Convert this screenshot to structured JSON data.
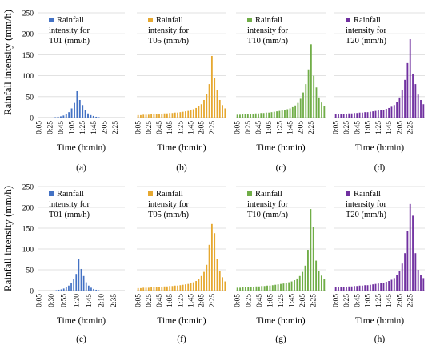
{
  "figure": {
    "ylabel": "Rainfall intensity (mm/h)",
    "xlabel": "Time (h:min)"
  },
  "chart_data": [
    {
      "type": "bar",
      "label": "(a)",
      "legend": [
        "Rainfall",
        "intensity for",
        "T01 (mm/h)"
      ],
      "color": "#4472C4",
      "ylim": [
        0,
        250
      ],
      "yticks": [
        0,
        50,
        100,
        150,
        200,
        250
      ],
      "xticklabels": [
        "0:05",
        "0:25",
        "0:45",
        "1:05",
        "1:25",
        "1:45",
        "2:05",
        "2:25"
      ],
      "tick_step": 4,
      "values": [
        0,
        0,
        0,
        0,
        0,
        0,
        1,
        2,
        3,
        5,
        8,
        13,
        22,
        35,
        63,
        42,
        30,
        18,
        10,
        6,
        4,
        2,
        1,
        0,
        0,
        0,
        0,
        0,
        0,
        0,
        0,
        0
      ]
    },
    {
      "type": "bar",
      "label": "(b)",
      "legend": [
        "Rainfall",
        "intensity for",
        "T05 (mm/h)"
      ],
      "color": "#E6A830",
      "ylim": [
        0,
        250
      ],
      "yticks": [
        0,
        50,
        100,
        150,
        200,
        250
      ],
      "xticklabels": [
        "0:05",
        "0:25",
        "0:45",
        "1:05",
        "1:25",
        "1:45",
        "2:05",
        "2:25"
      ],
      "tick_step": 4,
      "values": [
        6,
        6,
        7,
        7,
        7,
        8,
        8,
        8,
        9,
        9,
        10,
        10,
        11,
        11,
        12,
        12,
        13,
        14,
        15,
        16,
        18,
        20,
        23,
        27,
        32,
        42,
        57,
        80,
        147,
        95,
        65,
        42,
        30,
        22
      ]
    },
    {
      "type": "bar",
      "label": "(c)",
      "legend": [
        "Rainfall",
        "intensity for",
        "T10 (mm/h)"
      ],
      "color": "#70AD47",
      "ylim": [
        0,
        250
      ],
      "yticks": [
        0,
        50,
        100,
        150,
        200,
        250
      ],
      "xticklabels": [
        "0:05",
        "0:25",
        "0:45",
        "1:05",
        "1:25",
        "1:45",
        "2:05",
        "2:25"
      ],
      "tick_step": 4,
      "values": [
        7,
        7,
        8,
        8,
        8,
        9,
        9,
        10,
        10,
        11,
        11,
        12,
        12,
        13,
        14,
        15,
        16,
        17,
        18,
        20,
        22,
        25,
        29,
        35,
        45,
        60,
        80,
        115,
        175,
        100,
        72,
        48,
        36,
        27
      ]
    },
    {
      "type": "bar",
      "label": "(d)",
      "legend": [
        "Rainfall",
        "intensity for",
        "T20 (mm/h)"
      ],
      "color": "#7030A0",
      "ylim": [
        0,
        250
      ],
      "yticks": [
        0,
        50,
        100,
        150,
        200,
        250
      ],
      "xticklabels": [
        "0:05",
        "0:25",
        "0:45",
        "1:05",
        "1:25",
        "1:45",
        "2:05",
        "2:25"
      ],
      "tick_step": 4,
      "values": [
        8,
        8,
        9,
        9,
        9,
        10,
        10,
        11,
        11,
        12,
        12,
        13,
        13,
        14,
        15,
        16,
        17,
        18,
        19,
        21,
        23,
        26,
        30,
        37,
        48,
        65,
        90,
        130,
        187,
        105,
        80,
        55,
        42,
        32
      ]
    },
    {
      "type": "bar",
      "label": "(e)",
      "legend": [
        "Rainfall",
        "intensity for",
        "T01 (mm/h)"
      ],
      "color": "#4472C4",
      "ylim": [
        0,
        250
      ],
      "yticks": [
        0,
        50,
        100,
        150,
        200,
        250
      ],
      "xticklabels": [
        "0:05",
        "0:30",
        "0:55",
        "1:20",
        "1:45",
        "2:10",
        "2:35"
      ],
      "tick_step": 5,
      "values": [
        0,
        0,
        0,
        0,
        0,
        0,
        0,
        1,
        2,
        3,
        5,
        8,
        12,
        18,
        27,
        40,
        75,
        52,
        35,
        20,
        12,
        7,
        4,
        2,
        1,
        0,
        0,
        0,
        0,
        0,
        0,
        0,
        0,
        0,
        0
      ]
    },
    {
      "type": "bar",
      "label": "(f)",
      "legend": [
        "Rainfall",
        "intensity for",
        "T05 (mm/h)"
      ],
      "color": "#E6A830",
      "ylim": [
        0,
        250
      ],
      "yticks": [
        0,
        50,
        100,
        150,
        200,
        250
      ],
      "xticklabels": [
        "0:05",
        "0:25",
        "0:45",
        "1:05",
        "1:25",
        "1:45",
        "2:05",
        "2:25"
      ],
      "tick_step": 4,
      "values": [
        6,
        6,
        7,
        7,
        7,
        8,
        8,
        8,
        9,
        9,
        10,
        10,
        11,
        11,
        12,
        12,
        13,
        14,
        15,
        16,
        18,
        20,
        23,
        28,
        35,
        45,
        62,
        110,
        160,
        138,
        75,
        48,
        32,
        22
      ]
    },
    {
      "type": "bar",
      "label": "(g)",
      "legend": [
        "Rainfall",
        "intensity for",
        "T10 (mm/h)"
      ],
      "color": "#70AD47",
      "ylim": [
        0,
        250
      ],
      "yticks": [
        0,
        50,
        100,
        150,
        200,
        250
      ],
      "xticklabels": [
        "0:05",
        "0:25",
        "0:45",
        "1:05",
        "1:25",
        "1:45",
        "2:05",
        "2:25"
      ],
      "tick_step": 4,
      "values": [
        7,
        7,
        8,
        8,
        8,
        9,
        9,
        10,
        10,
        11,
        11,
        12,
        12,
        13,
        14,
        15,
        16,
        17,
        18,
        20,
        22,
        25,
        29,
        35,
        45,
        60,
        98,
        196,
        152,
        72,
        48,
        36,
        27
      ]
    },
    {
      "type": "bar",
      "label": "(h)",
      "legend": [
        "Rainfall",
        "intensity for",
        "T20 (mm/h)"
      ],
      "color": "#7030A0",
      "ylim": [
        0,
        250
      ],
      "yticks": [
        0,
        50,
        100,
        150,
        200,
        250
      ],
      "xticklabels": [
        "0:05",
        "0:25",
        "0:45",
        "1:05",
        "1:25",
        "1:45",
        "2:05",
        "2:25"
      ],
      "tick_step": 4,
      "values": [
        8,
        8,
        9,
        9,
        9,
        10,
        10,
        11,
        11,
        12,
        12,
        13,
        13,
        14,
        15,
        16,
        17,
        18,
        19,
        21,
        23,
        26,
        30,
        37,
        48,
        65,
        90,
        143,
        208,
        180,
        90,
        50,
        38,
        30
      ]
    }
  ]
}
